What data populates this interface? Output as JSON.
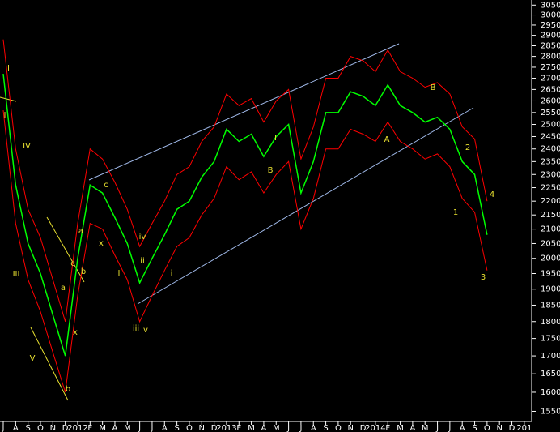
{
  "chart_data": {
    "type": "line",
    "categories": [
      "J",
      "A",
      "S",
      "O",
      "N",
      "D",
      "2012",
      "F",
      "M",
      "A",
      "M",
      "J",
      "J",
      "A",
      "S",
      "O",
      "N",
      "D",
      "2013",
      "F",
      "M",
      "A",
      "M",
      "J",
      "J",
      "A",
      "S",
      "O",
      "N",
      "D",
      "2014",
      "F",
      "M",
      "A",
      "M",
      "J",
      "J",
      "A",
      "S",
      "O",
      "N",
      "D",
      "201"
    ],
    "series": [
      {
        "color": "#ff0000",
        "values": [
          2880,
          2400,
          2170,
          2070,
          1930,
          1800,
          2120,
          2400,
          2360,
          2270,
          2170,
          2040,
          2120,
          2200,
          2300,
          2330,
          2430,
          2490,
          2630,
          2580,
          2610,
          2510,
          2600,
          2650,
          2360,
          2490,
          2700,
          2700,
          2800,
          2780,
          2730,
          2830,
          2730,
          2700,
          2660,
          2680,
          2630,
          2490,
          2440,
          2200,
          null,
          null,
          null
        ]
      },
      {
        "color": "#ff0000",
        "values": [
          2560,
          2120,
          1930,
          1830,
          1710,
          1600,
          1880,
          2120,
          2100,
          2010,
          1930,
          1800,
          1880,
          1960,
          2040,
          2070,
          2150,
          2210,
          2330,
          2280,
          2310,
          2230,
          2300,
          2350,
          2100,
          2210,
          2400,
          2400,
          2480,
          2460,
          2430,
          2510,
          2430,
          2400,
          2360,
          2380,
          2330,
          2210,
          2160,
          1960,
          null,
          null,
          null
        ]
      },
      {
        "color": "#00ff00",
        "values": [
          2720,
          2260,
          2050,
          1950,
          1820,
          1700,
          2000,
          2260,
          2230,
          2140,
          2050,
          1920,
          2000,
          2080,
          2170,
          2200,
          2290,
          2350,
          2480,
          2430,
          2460,
          2370,
          2450,
          2500,
          2230,
          2350,
          2550,
          2550,
          2640,
          2620,
          2580,
          2670,
          2580,
          2550,
          2510,
          2530,
          2480,
          2350,
          2300,
          2080,
          null,
          null,
          null
        ]
      }
    ],
    "ylim": [
      1524,
      3076
    ],
    "log_scale": true,
    "yticks": [
      1550,
      1600,
      1650,
      1700,
      1750,
      1800,
      1850,
      1900,
      1950,
      2000,
      2050,
      2100,
      2150,
      2200,
      2250,
      2300,
      2350,
      2400,
      2450,
      2500,
      2550,
      2600,
      2650,
      2700,
      2750,
      2800,
      2850,
      2900,
      2950,
      3000,
      3050
    ],
    "annotations": [
      "II",
      "I",
      "IV",
      "III",
      "V",
      "a",
      "b",
      "x",
      "c",
      "b",
      "a",
      "x",
      "c",
      "I",
      "ii",
      "iii",
      "v",
      "iv",
      "i",
      "II",
      "B",
      "A",
      "B",
      "1",
      "2",
      "3",
      "4"
    ],
    "annotation_color": "#e8e030"
  }
}
